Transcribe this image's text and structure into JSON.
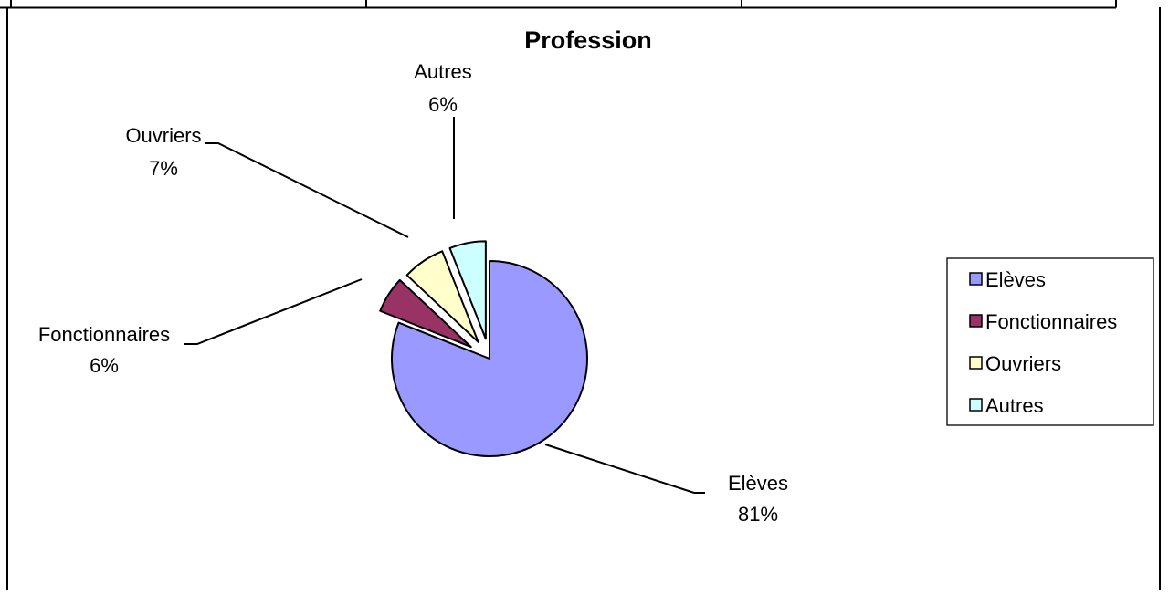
{
  "chart_data": {
    "type": "pie",
    "title": "Profession",
    "slices": [
      {
        "name": "Elèves",
        "value": 81,
        "label": "81%",
        "color": "#9999ff"
      },
      {
        "name": "Fonctionnaires",
        "value": 6,
        "label": "6%",
        "color": "#993366"
      },
      {
        "name": "Ouvriers",
        "value": 7,
        "label": "7%",
        "color": "#ffffcc"
      },
      {
        "name": "Autres",
        "value": 6,
        "label": "6%",
        "color": "#ccffff"
      }
    ],
    "exploded": true,
    "legend_position": "right"
  }
}
